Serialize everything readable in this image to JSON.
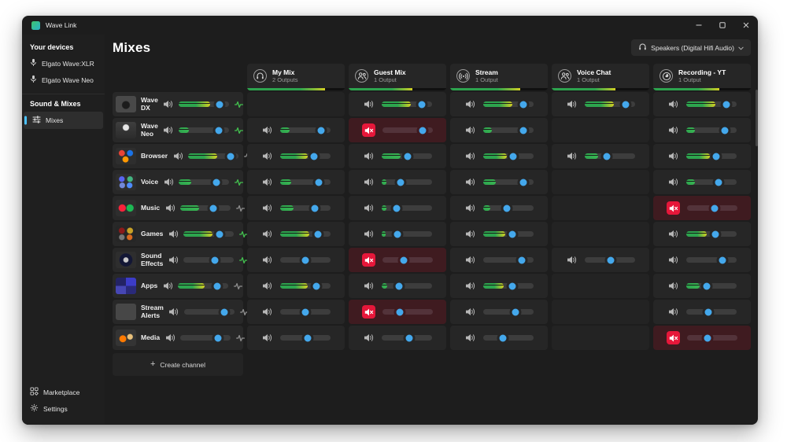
{
  "window": {
    "title": "Wave Link"
  },
  "sidebar": {
    "devices_header": "Your devices",
    "devices": [
      {
        "label": "Elgato Wave:XLR"
      },
      {
        "label": "Elgato Wave Neo"
      }
    ],
    "mixes_header": "Sound & Mixes",
    "mixes_item_label": "Mixes",
    "footer": [
      {
        "label": "Marketplace"
      },
      {
        "label": "Settings"
      }
    ]
  },
  "main": {
    "title": "Mixes",
    "output_device": {
      "label": "Speakers (Digital Hifi Audio)"
    },
    "create_channel_label": "Create channel"
  },
  "icons": {
    "plus": "+"
  },
  "colors": {
    "knob_blue": "#44a8ec",
    "meter_green": "#2da44e",
    "meter_yellow": "#d4ce22",
    "mute_red": "#e6173a",
    "muted_cell_bg": "#3f1b20",
    "sidebar_accent": "#4cc2ff"
  },
  "mixes": [
    {
      "name": "My Mix",
      "outputs": "2 Outputs",
      "icon": "headphones-icon",
      "level": 80
    },
    {
      "name": "Guest Mix",
      "outputs": "1 Output",
      "icon": "people-icon",
      "level": 65
    },
    {
      "name": "Stream",
      "outputs": "1 Output",
      "icon": "broadcast-icon",
      "level": 72
    },
    {
      "name": "Voice Chat",
      "outputs": "1 Output",
      "icon": "people-icon",
      "level": 65
    },
    {
      "name": "Recording - YT",
      "outputs": "1 Output",
      "icon": "obs-icon",
      "level": 68
    }
  ],
  "channels": [
    {
      "name": "Wave DX",
      "thumb": "wave-dx",
      "strip": {
        "level": 62,
        "volume": 82,
        "fx_active": true
      },
      "cells": [
        null,
        {
          "level": 58,
          "volume": 80
        },
        {
          "level": 58,
          "volume": 80
        },
        {
          "level": 58,
          "volume": 82
        },
        {
          "level": 58,
          "volume": 80
        }
      ]
    },
    {
      "name": "Wave Neo",
      "thumb": "wave-neo",
      "strip": {
        "level": 20,
        "volume": 80,
        "fx_active": true
      },
      "cells": [
        {
          "level": 20,
          "volume": 82
        },
        {
          "level": 0,
          "volume": 80,
          "muted": true
        },
        {
          "level": 18,
          "volume": 80
        },
        null,
        {
          "level": 18,
          "volume": 78
        }
      ]
    },
    {
      "name": "Browser",
      "thumb": "browser",
      "strip": {
        "level": 58,
        "volume": 85,
        "fx_active": false
      },
      "cells": [
        {
          "level": 55,
          "volume": 68
        },
        {
          "level": 38,
          "volume": 52
        },
        {
          "level": 48,
          "volume": 60
        },
        {
          "level": 28,
          "volume": 45
        },
        {
          "level": 48,
          "volume": 60
        }
      ]
    },
    {
      "name": "Voice",
      "thumb": "voice",
      "strip": {
        "level": 25,
        "volume": 75,
        "fx_active": true
      },
      "cells": [
        {
          "level": 22,
          "volume": 78
        },
        {
          "level": 10,
          "volume": 38
        },
        {
          "level": 25,
          "volume": 80
        },
        null,
        {
          "level": 18,
          "volume": 65
        }
      ]
    },
    {
      "name": "Music",
      "thumb": "music",
      "strip": {
        "level": 38,
        "volume": 65,
        "fx_active": false
      },
      "cells": [
        {
          "level": 28,
          "volume": 70
        },
        {
          "level": 10,
          "volume": 30
        },
        {
          "level": 15,
          "volume": 48
        },
        null,
        {
          "level": 0,
          "volume": 55,
          "muted": true
        }
      ]
    },
    {
      "name": "Games",
      "thumb": "games",
      "strip": {
        "level": 58,
        "volume": 72,
        "fx_active": true
      },
      "cells": [
        {
          "level": 58,
          "volume": 75
        },
        {
          "level": 8,
          "volume": 32
        },
        {
          "level": 45,
          "volume": 58
        },
        null,
        {
          "level": 42,
          "volume": 58
        }
      ]
    },
    {
      "name": "Sound Effects",
      "thumb": "sound-effects",
      "strip": {
        "level": 0,
        "volume": 62,
        "fx_active": true
      },
      "cells": [
        {
          "level": 0,
          "volume": 50
        },
        {
          "level": 0,
          "volume": 42,
          "muted": true
        },
        {
          "level": 0,
          "volume": 78
        },
        {
          "level": 0,
          "volume": 52
        },
        {
          "level": 0,
          "volume": 72
        }
      ]
    },
    {
      "name": "Apps",
      "thumb": "apps",
      "strip": {
        "level": 52,
        "volume": 78,
        "fx_active": false
      },
      "cells": [
        {
          "level": 55,
          "volume": 72
        },
        {
          "level": 12,
          "volume": 35
        },
        {
          "level": 42,
          "volume": 58
        },
        null,
        {
          "level": 28,
          "volume": 42
        }
      ]
    },
    {
      "name": "Stream Alerts",
      "thumb": "stream-alerts",
      "strip": {
        "level": 0,
        "volume": 80,
        "fx_active": false
      },
      "cells": [
        {
          "level": 0,
          "volume": 50
        },
        {
          "level": 0,
          "volume": 35,
          "muted": true
        },
        {
          "level": 0,
          "volume": 65
        },
        null,
        {
          "level": 0,
          "volume": 45
        }
      ]
    },
    {
      "name": "Media",
      "thumb": "media",
      "strip": {
        "level": 0,
        "volume": 75,
        "fx_active": false
      },
      "cells": [
        {
          "level": 0,
          "volume": 55
        },
        {
          "level": 0,
          "volume": 55
        },
        {
          "level": 0,
          "volume": 40
        },
        null,
        {
          "level": 0,
          "volume": 40,
          "muted": true
        }
      ]
    }
  ]
}
